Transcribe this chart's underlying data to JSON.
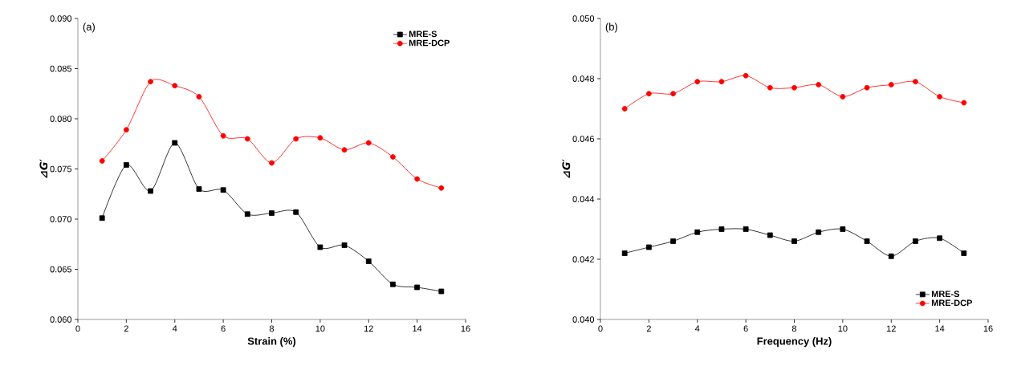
{
  "chart_data": [
    {
      "type": "line",
      "xlabel": "Strain (%)",
      "ylabel": "⊿*G′*",
      "annotations": [
        "(a)"
      ],
      "legend": "top right",
      "grid": false,
      "line_style": "solid",
      "x": [
        1,
        2,
        3,
        4,
        5,
        6,
        7,
        8,
        9,
        10,
        11,
        12,
        13,
        14,
        15
      ],
      "xlim": [
        0,
        16
      ],
      "xticks": [
        0,
        2,
        4,
        6,
        8,
        10,
        12,
        14,
        16
      ],
      "ylim": [
        0.06,
        0.09
      ],
      "yticks": [
        {
          "value": 0.06,
          "label": "0.060"
        },
        {
          "value": 0.065,
          "label": "0.065"
        },
        {
          "value": 0.07,
          "label": "0.070"
        },
        {
          "value": 0.075,
          "label": "0.075"
        },
        {
          "value": 0.08,
          "label": "0.080"
        },
        {
          "value": 0.085,
          "label": "0.085"
        },
        {
          "value": 0.09,
          "label": "0.090"
        }
      ],
      "series": [
        {
          "name": "MRE-S",
          "color": "#000000",
          "marker": "square",
          "values": [
            0.0701,
            0.0754,
            0.0728,
            0.0776,
            0.073,
            0.0729,
            0.0705,
            0.0706,
            0.0707,
            0.0672,
            0.0674,
            0.0658,
            0.0635,
            0.0632,
            0.0628
          ]
        },
        {
          "name": "MRE-DCP",
          "color": "#ff0000",
          "marker": "circle",
          "values": [
            0.0758,
            0.0789,
            0.0837,
            0.0833,
            0.0822,
            0.0783,
            0.078,
            0.0756,
            0.078,
            0.0781,
            0.0769,
            0.0776,
            0.0762,
            0.074,
            0.0731
          ]
        }
      ]
    },
    {
      "type": "line",
      "xlabel": "Frequency (Hz)",
      "ylabel": "⊿*G′*",
      "annotations": [
        "(b)"
      ],
      "legend": "bottom right",
      "grid": false,
      "line_style": "solid",
      "x": [
        1,
        2,
        3,
        4,
        5,
        6,
        7,
        8,
        9,
        10,
        11,
        12,
        13,
        14,
        15
      ],
      "xlim": [
        0,
        16
      ],
      "xticks": [
        0,
        2,
        4,
        6,
        8,
        10,
        12,
        14,
        16
      ],
      "ylim": [
        0.04,
        0.05
      ],
      "yticks": [
        {
          "value": 0.04,
          "label": "0.040"
        },
        {
          "value": 0.042,
          "label": "0.042"
        },
        {
          "value": 0.044,
          "label": "0.044"
        },
        {
          "value": 0.046,
          "label": "0.046"
        },
        {
          "value": 0.048,
          "label": "0.048"
        },
        {
          "value": 0.05,
          "label": "0.050"
        }
      ],
      "series": [
        {
          "name": "MRE-S",
          "color": "#000000",
          "marker": "square",
          "values": [
            0.0422,
            0.0424,
            0.0426,
            0.0429,
            0.043,
            0.043,
            0.0428,
            0.0426,
            0.0429,
            0.043,
            0.0426,
            0.0421,
            0.0426,
            0.0427,
            0.0422
          ]
        },
        {
          "name": "MRE-DCP",
          "color": "#ff0000",
          "marker": "circle",
          "values": [
            0.047,
            0.0475,
            0.0475,
            0.0479,
            0.0479,
            0.0481,
            0.0477,
            0.0477,
            0.0478,
            0.0474,
            0.0477,
            0.0478,
            0.0479,
            0.0474,
            0.0472
          ]
        }
      ]
    }
  ]
}
